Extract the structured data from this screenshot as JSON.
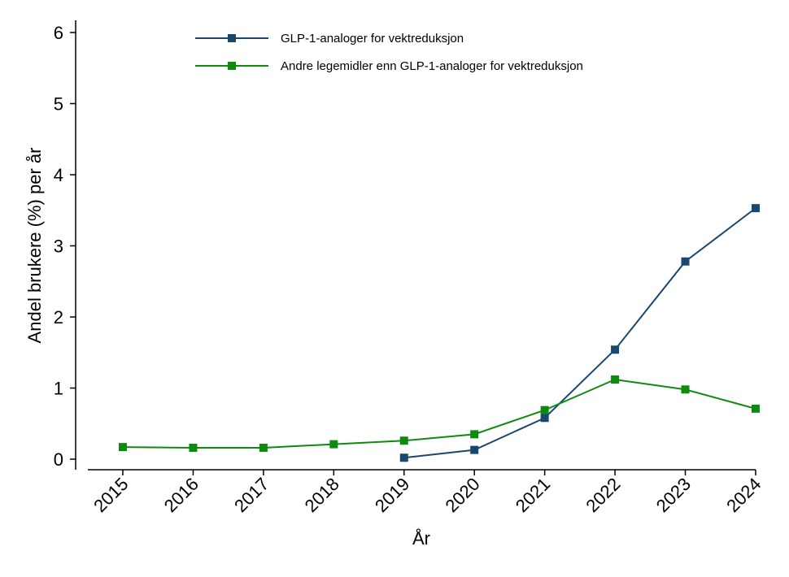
{
  "chart_data": {
    "type": "line",
    "x_label": "År",
    "y_label": "Andel brukere (%) per år",
    "categories": [
      "2015",
      "2016",
      "2017",
      "2018",
      "2019",
      "2020",
      "2021",
      "2022",
      "2023",
      "2024"
    ],
    "series": [
      {
        "name": "GLP-1-analoger for vektreduksjon",
        "color": "#1a476f",
        "values": [
          null,
          null,
          null,
          null,
          0.02,
          0.13,
          0.58,
          1.54,
          2.78,
          3.53
        ]
      },
      {
        "name": "Andre legemidler enn GLP-1-analoger for vektreduksjon",
        "color": "#0f8a0f",
        "values": [
          0.17,
          0.16,
          0.16,
          0.21,
          0.26,
          0.35,
          0.69,
          1.12,
          0.98,
          0.71
        ]
      }
    ],
    "ylim": [
      0,
      6
    ],
    "yticks": [
      0,
      1,
      2,
      3,
      4,
      5,
      6
    ],
    "grid": false,
    "legend": "top"
  }
}
